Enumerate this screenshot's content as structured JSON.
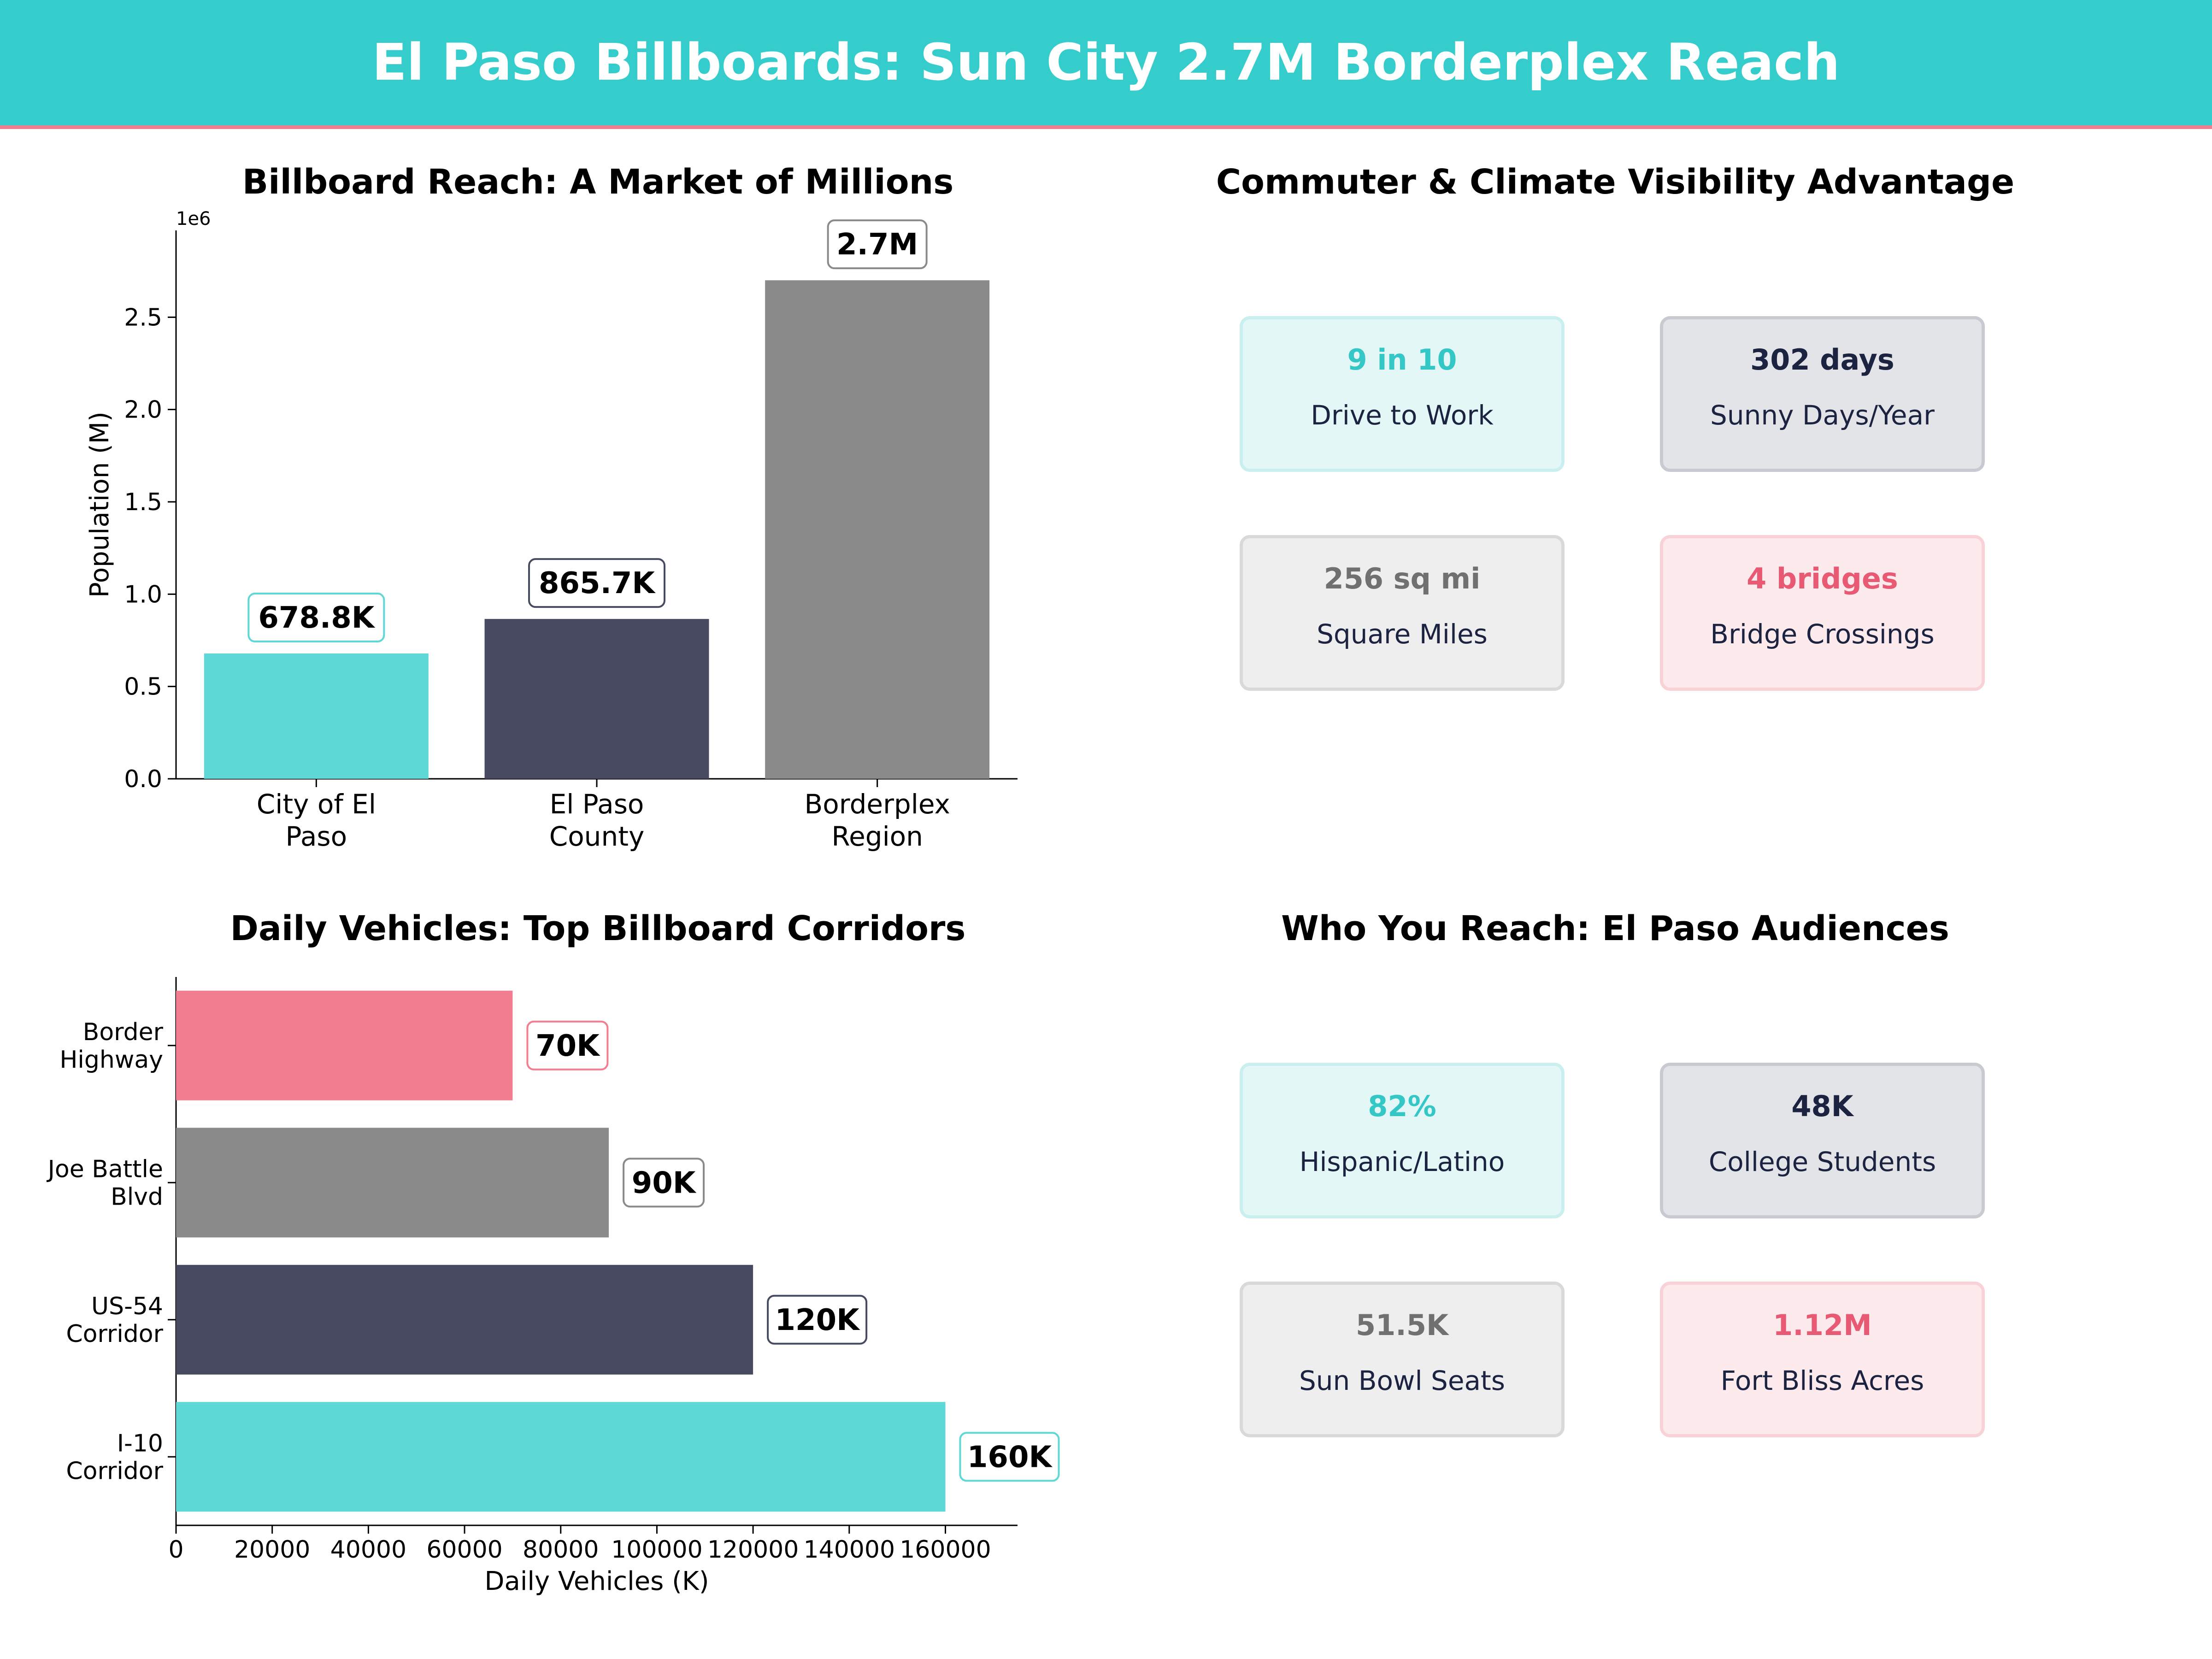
{
  "header": {
    "title": "El Paso Billboards: Sun City 2.7M Borderplex Reach"
  },
  "colors": {
    "teal": "#5dd8d6",
    "navy": "#474a60",
    "gray": "#8a8a8a",
    "pink": "#f47e91",
    "tealText": "#35c6c6",
    "navyText": "#1c2340",
    "grayText": "#707070",
    "pinkText": "#e85a73"
  },
  "chart_data": [
    {
      "type": "bar",
      "title": "Billboard Reach: A Market of Millions",
      "ylabel": "Population (M)",
      "scale_note": "1e6",
      "categories": [
        "City of El Paso",
        "El Paso County",
        "Borderplex Region"
      ],
      "category_lines": [
        [
          "City of El",
          "Paso"
        ],
        [
          "El Paso",
          "County"
        ],
        [
          "Borderplex",
          "Region"
        ]
      ],
      "values": [
        678800,
        865700,
        2700000
      ],
      "data_labels": [
        "678.8K",
        "865.7K",
        "2.7M"
      ],
      "yticks": [
        0,
        500000,
        1000000,
        1500000,
        2000000,
        2500000
      ],
      "ytick_labels": [
        "0.0",
        "0.5",
        "1.0",
        "1.5",
        "2.0",
        "2.5"
      ],
      "ylim": [
        0,
        2970000
      ],
      "colors": [
        "#5dd8d6",
        "#474a60",
        "#8a8a8a"
      ],
      "grid": false
    },
    {
      "type": "bar",
      "orientation": "horizontal",
      "title": "Daily Vehicles: Top Billboard Corridors",
      "xlabel": "Daily Vehicles (K)",
      "categories": [
        "Border Highway",
        "Joe Battle Blvd",
        "US-54 Corridor",
        "I-10 Corridor"
      ],
      "category_lines": [
        [
          "Border",
          "Highway"
        ],
        [
          "Joe Battle",
          "Blvd"
        ],
        [
          "US-54",
          "Corridor"
        ],
        [
          "I-10",
          "Corridor"
        ]
      ],
      "values": [
        70000,
        90000,
        120000,
        160000
      ],
      "data_labels": [
        "70K",
        "90K",
        "120K",
        "160K"
      ],
      "xticks": [
        0,
        20000,
        40000,
        60000,
        80000,
        100000,
        120000,
        140000,
        160000
      ],
      "xtick_labels": [
        "0",
        "20000",
        "40000",
        "60000",
        "80000",
        "100000",
        "120000",
        "140000",
        "160000"
      ],
      "xlim": [
        0,
        175000
      ],
      "colors": [
        "#f47e91",
        "#8a8a8a",
        "#474a60",
        "#5dd8d6"
      ],
      "grid": false
    }
  ],
  "commuter": {
    "title": "Commuter & Climate Visibility Advantage",
    "cards": [
      {
        "value": "9 in 10",
        "label": "Drive to Work"
      },
      {
        "value": "302 days",
        "label": "Sunny Days/Year"
      },
      {
        "value": "256 sq mi",
        "label": "Square Miles"
      },
      {
        "value": "4 bridges",
        "label": "Bridge Crossings"
      }
    ]
  },
  "audience": {
    "title": "Who You Reach: El Paso Audiences",
    "cards": [
      {
        "value": "82%",
        "label": "Hispanic/Latino"
      },
      {
        "value": "48K",
        "label": "College Students"
      },
      {
        "value": "51.5K",
        "label": "Sun Bowl Seats"
      },
      {
        "value": "1.12M",
        "label": "Fort Bliss Acres"
      }
    ]
  }
}
